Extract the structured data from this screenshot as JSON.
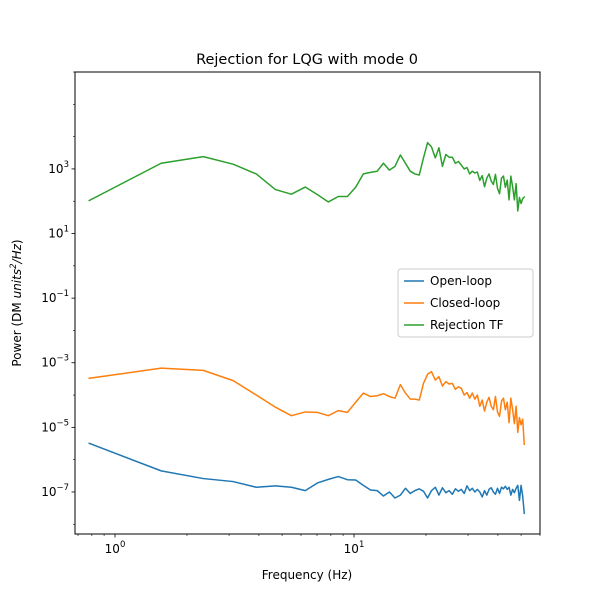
{
  "chart_data": {
    "type": "line",
    "title": "Rejection for LQG with mode 0",
    "xlabel": "Frequency (Hz)",
    "ylabel_prefix": "Power (DM ",
    "ylabel_unit_base": "units",
    "ylabel_unit_exp": "2",
    "ylabel_unit_tail": "/Hz",
    "ylabel_suffix": ")",
    "xscale": "log",
    "yscale": "log",
    "xlim": [
      0.68,
      60
    ],
    "ylim": [
      5e-09,
      1000000
    ],
    "grid": false,
    "legend_position": "center-right",
    "xticks": [
      {
        "value": 1,
        "base": "10",
        "exp": "0"
      },
      {
        "value": 10,
        "base": "10",
        "exp": "1"
      }
    ],
    "yticks": [
      {
        "value": 1e-07,
        "base": "10",
        "exp": "−7"
      },
      {
        "value": 1e-05,
        "base": "10",
        "exp": "−5"
      },
      {
        "value": 0.001,
        "base": "10",
        "exp": "−3"
      },
      {
        "value": 0.1,
        "base": "10",
        "exp": "−1"
      },
      {
        "value": 10,
        "base": "10",
        "exp": "1"
      },
      {
        "value": 1000,
        "base": "10",
        "exp": "3"
      }
    ],
    "series": [
      {
        "name": "Open-loop",
        "color": "#1f77b4",
        "points": [
          [
            0.78,
            3.2e-06
          ],
          [
            1.56,
            4.5e-07
          ],
          [
            2.34,
            2.6e-07
          ],
          [
            3.12,
            2.1e-07
          ],
          [
            3.9,
            1.4e-07
          ],
          [
            4.69,
            1.55e-07
          ],
          [
            5.47,
            1.4e-07
          ],
          [
            6.25,
            1.1e-07
          ],
          [
            7.03,
            1.9e-07
          ],
          [
            7.81,
            2.45e-07
          ],
          [
            8.59,
            3e-07
          ],
          [
            9.38,
            2.4e-07
          ],
          [
            10.16,
            2.35e-07
          ],
          [
            10.94,
            1.6e-07
          ],
          [
            11.72,
            1.15e-07
          ],
          [
            12.5,
            1.1e-07
          ],
          [
            13.28,
            7.5e-08
          ],
          [
            14.06,
            1e-07
          ],
          [
            14.84,
            6.5e-08
          ],
          [
            15.63,
            8e-08
          ],
          [
            16.41,
            1.3e-07
          ],
          [
            17.19,
            9e-08
          ],
          [
            17.97,
            1.1e-07
          ],
          [
            18.75,
            1.25e-07
          ],
          [
            19.53,
            1.05e-07
          ],
          [
            20.31,
            6.5e-08
          ],
          [
            21.09,
            1.1e-07
          ],
          [
            21.88,
            1.4e-07
          ],
          [
            22.66,
            8e-08
          ],
          [
            23.44,
            1.35e-07
          ],
          [
            24.22,
            9.5e-08
          ],
          [
            25.0,
            1.1e-07
          ],
          [
            25.78,
            8.5e-08
          ],
          [
            26.56,
            1.25e-07
          ],
          [
            27.34,
            1.05e-07
          ],
          [
            28.13,
            1.2e-07
          ],
          [
            28.91,
            9e-08
          ],
          [
            29.69,
            1.55e-07
          ],
          [
            30.47,
            1.1e-07
          ],
          [
            31.25,
            1.3e-07
          ],
          [
            32.03,
            1e-07
          ],
          [
            32.81,
            1.2e-07
          ],
          [
            33.59,
            1e-07
          ],
          [
            34.38,
            7e-08
          ],
          [
            35.16,
            1.1e-07
          ],
          [
            35.94,
            8e-08
          ],
          [
            36.72,
            1.2e-07
          ],
          [
            37.5,
            1.35e-07
          ],
          [
            38.28,
            1e-07
          ],
          [
            39.06,
            8.5e-08
          ],
          [
            39.84,
            1.3e-07
          ],
          [
            40.63,
            9e-08
          ],
          [
            41.41,
            1.4e-07
          ],
          [
            42.19,
            1.25e-07
          ],
          [
            42.97,
            1.5e-07
          ],
          [
            43.75,
            1.2e-07
          ],
          [
            44.53,
            1.4e-07
          ],
          [
            45.31,
            8e-08
          ],
          [
            46.09,
            1.2e-07
          ],
          [
            46.88,
            9.5e-08
          ],
          [
            47.66,
            1.3e-07
          ],
          [
            48.44,
            1.6e-07
          ],
          [
            49.22,
            5.5e-08
          ],
          [
            50.0,
            1.6e-07
          ],
          [
            50.78,
            7.5e-08
          ],
          [
            51.56,
            2.2e-08
          ]
        ]
      },
      {
        "name": "Closed-loop",
        "color": "#ff7f0e",
        "points": [
          [
            0.78,
            0.00033
          ],
          [
            1.56,
            0.00068
          ],
          [
            2.34,
            0.00058
          ],
          [
            3.12,
            0.00028
          ],
          [
            3.9,
            0.0001
          ],
          [
            4.69,
            4.2e-05
          ],
          [
            5.47,
            2.3e-05
          ],
          [
            6.25,
            3e-05
          ],
          [
            7.03,
            2.9e-05
          ],
          [
            7.81,
            2.3e-05
          ],
          [
            8.59,
            3.3e-05
          ],
          [
            9.38,
            2.9e-05
          ],
          [
            10.16,
            6e-05
          ],
          [
            10.94,
            0.000115
          ],
          [
            11.72,
            9e-05
          ],
          [
            12.5,
            9.5e-05
          ],
          [
            13.28,
            0.00011
          ],
          [
            14.06,
            9e-05
          ],
          [
            14.84,
            8e-05
          ],
          [
            15.63,
            0.00021
          ],
          [
            16.41,
            0.000115
          ],
          [
            17.19,
            7.5e-05
          ],
          [
            17.97,
            7.5e-05
          ],
          [
            18.75,
            7e-05
          ],
          [
            19.53,
            0.00023
          ],
          [
            20.31,
            0.00044
          ],
          [
            21.09,
            0.00053
          ],
          [
            21.88,
            0.00029
          ],
          [
            22.66,
            0.00037
          ],
          [
            23.44,
            0.00019
          ],
          [
            24.22,
            0.00026
          ],
          [
            25.0,
            0.00022
          ],
          [
            25.78,
            0.00023
          ],
          [
            26.56,
            0.00015
          ],
          [
            27.34,
            0.00018
          ],
          [
            28.13,
            0.00016
          ],
          [
            28.91,
            0.0001
          ],
          [
            29.69,
            0.00012
          ],
          [
            30.47,
            8e-05
          ],
          [
            31.25,
            0.000115
          ],
          [
            32.03,
            7.5e-05
          ],
          [
            32.81,
            0.0001
          ],
          [
            33.59,
            4.5e-05
          ],
          [
            34.38,
            7e-05
          ],
          [
            35.16,
            3.2e-05
          ],
          [
            35.94,
            6e-05
          ],
          [
            36.72,
            8.5e-05
          ],
          [
            37.5,
            4.5e-05
          ],
          [
            38.28,
            3.5e-05
          ],
          [
            39.06,
            9e-05
          ],
          [
            39.84,
            3e-05
          ],
          [
            40.63,
            2.2e-05
          ],
          [
            41.41,
            6.5e-05
          ],
          [
            42.19,
            8e-05
          ],
          [
            42.97,
            3.5e-05
          ],
          [
            43.75,
            6e-05
          ],
          [
            44.53,
            1.4e-05
          ],
          [
            45.31,
            8e-05
          ],
          [
            46.09,
            3.5e-05
          ],
          [
            46.88,
            1.3e-05
          ],
          [
            47.66,
            4.5e-05
          ],
          [
            48.44,
            7e-06
          ],
          [
            49.22,
            2e-05
          ],
          [
            50.0,
            1.2e-05
          ],
          [
            50.78,
            1.8e-05
          ],
          [
            51.56,
            3e-06
          ]
        ]
      },
      {
        "name": "Rejection TF",
        "color": "#2ca02c",
        "points": [
          [
            0.78,
            105
          ],
          [
            1.56,
            1500
          ],
          [
            2.34,
            2400
          ],
          [
            3.12,
            1400
          ],
          [
            3.9,
            700
          ],
          [
            4.69,
            230
          ],
          [
            5.47,
            165
          ],
          [
            6.25,
            275
          ],
          [
            7.03,
            160
          ],
          [
            7.81,
            95
          ],
          [
            8.59,
            140
          ],
          [
            9.38,
            140
          ],
          [
            10.16,
            270
          ],
          [
            10.94,
            700
          ],
          [
            11.72,
            780
          ],
          [
            12.5,
            850
          ],
          [
            13.28,
            1500
          ],
          [
            14.06,
            920
          ],
          [
            14.84,
            1200
          ],
          [
            15.63,
            2700
          ],
          [
            16.41,
            1500
          ],
          [
            17.19,
            850
          ],
          [
            17.97,
            700
          ],
          [
            18.75,
            650
          ],
          [
            19.53,
            2200
          ],
          [
            20.31,
            6500
          ],
          [
            21.09,
            4800
          ],
          [
            21.88,
            2200
          ],
          [
            22.66,
            4500
          ],
          [
            23.44,
            1200
          ],
          [
            24.22,
            2800
          ],
          [
            25.0,
            2300
          ],
          [
            25.78,
            2300
          ],
          [
            26.56,
            1500
          ],
          [
            27.34,
            1700
          ],
          [
            28.13,
            1300
          ],
          [
            28.91,
            1000
          ],
          [
            29.69,
            1100
          ],
          [
            30.47,
            700
          ],
          [
            31.25,
            850
          ],
          [
            32.03,
            750
          ],
          [
            32.81,
            800
          ],
          [
            33.59,
            440
          ],
          [
            34.38,
            620
          ],
          [
            35.16,
            280
          ],
          [
            35.94,
            520
          ],
          [
            36.72,
            700
          ],
          [
            37.5,
            420
          ],
          [
            38.28,
            330
          ],
          [
            39.06,
            680
          ],
          [
            39.84,
            250
          ],
          [
            40.63,
            170
          ],
          [
            41.41,
            520
          ],
          [
            42.19,
            600
          ],
          [
            42.97,
            270
          ],
          [
            43.75,
            450
          ],
          [
            44.53,
            110
          ],
          [
            45.31,
            600
          ],
          [
            46.09,
            280
          ],
          [
            46.88,
            110
          ],
          [
            47.66,
            350
          ],
          [
            48.44,
            50
          ],
          [
            49.22,
            130
          ],
          [
            50.0,
            85
          ],
          [
            50.78,
            120
          ],
          [
            51.56,
            135
          ]
        ]
      }
    ]
  }
}
